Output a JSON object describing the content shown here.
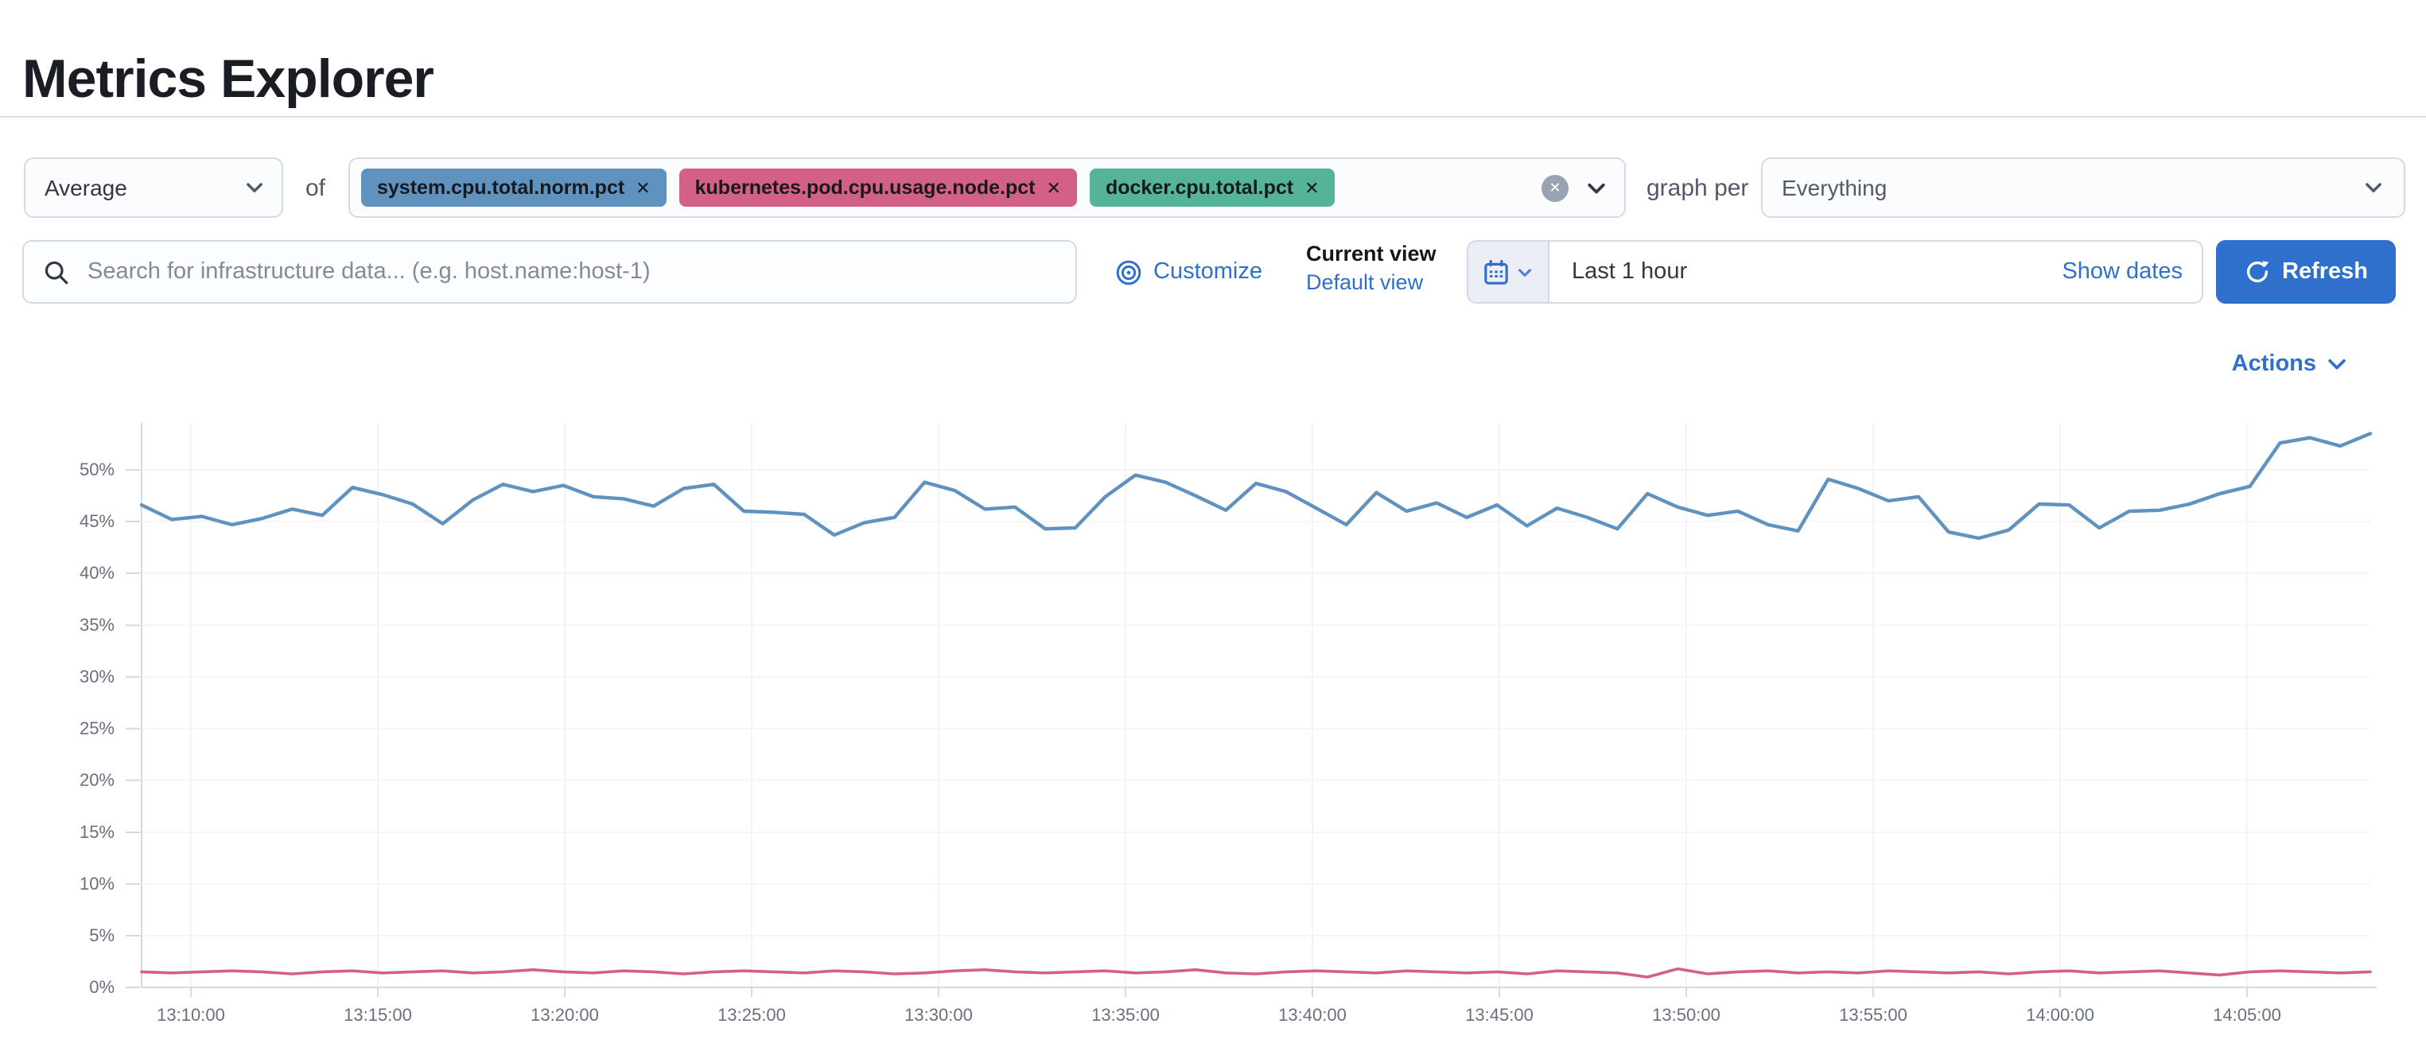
{
  "page": {
    "title": "Metrics Explorer"
  },
  "controls": {
    "aggregation": {
      "value": "Average"
    },
    "of_label": "of",
    "metrics": [
      {
        "label": "system.cpu.total.norm.pct",
        "color": "#6092C0"
      },
      {
        "label": "kubernetes.pod.cpu.usage.node.pct",
        "color": "#D36086"
      },
      {
        "label": "docker.cpu.total.pct",
        "color": "#54B399"
      }
    ],
    "remove_glyph": "✕",
    "clear_glyph": "✕",
    "graph_per_label": "graph per",
    "group_by": {
      "value": "Everything"
    }
  },
  "toolbar": {
    "search": {
      "value": "",
      "placeholder": "Search for infrastructure data... (e.g. host.name:host-1)"
    },
    "customize_label": "Customize",
    "view_selector": {
      "current_label": "Current view",
      "selected_view": "Default view"
    },
    "time_picker": {
      "value": "Last 1 hour",
      "show_dates_label": "Show dates"
    },
    "refresh_label": "Refresh"
  },
  "actions_label": "Actions",
  "icons": {
    "search": "search-icon",
    "customize": "bullseye-icon",
    "calendar": "calendar-icon",
    "refresh": "refresh-icon",
    "chevron": "chevron-down-icon",
    "clear": "clear-circle-icon"
  },
  "chart_data": {
    "type": "line",
    "title": "",
    "xlabel": "",
    "ylabel": "",
    "ylim": [
      0,
      55
    ],
    "grid": true,
    "legend": "none",
    "y_ticks": [
      "0%",
      "5%",
      "10%",
      "15%",
      "20%",
      "25%",
      "30%",
      "35%",
      "40%",
      "45%",
      "50%"
    ],
    "y_tick_values": [
      0,
      5,
      10,
      15,
      20,
      25,
      30,
      35,
      40,
      45,
      50
    ],
    "x_ticks": [
      "13:10:00",
      "13:15:00",
      "13:20:00",
      "13:25:00",
      "13:30:00",
      "13:35:00",
      "13:40:00",
      "13:45:00",
      "13:50:00",
      "13:55:00",
      "14:00:00",
      "14:05:00"
    ],
    "x_range_note": "Last 1 hour, ~13:08 to ~14:08, 1-minute resolution",
    "series": [
      {
        "name": "avg of system.cpu.total.norm.pct",
        "color": "#6092C0",
        "unit": "%",
        "values": [
          46.6,
          45.2,
          45.5,
          44.7,
          45.3,
          46.2,
          45.6,
          48.3,
          47.6,
          46.7,
          44.8,
          47.1,
          48.6,
          47.9,
          48.5,
          47.4,
          47.2,
          46.5,
          48.2,
          48.6,
          46.0,
          45.9,
          45.7,
          43.7,
          44.9,
          45.4,
          48.8,
          48.0,
          46.2,
          46.4,
          44.3,
          44.4,
          47.4,
          49.5,
          48.8,
          47.5,
          46.1,
          48.7,
          47.9,
          46.3,
          44.7,
          47.8,
          46.0,
          46.8,
          45.4,
          46.6,
          44.6,
          46.3,
          45.4,
          44.3,
          47.7,
          46.4,
          45.6,
          46.0,
          44.7,
          44.1,
          49.1,
          48.2,
          47.0,
          47.4,
          44.0,
          43.4,
          44.2,
          46.7,
          46.6,
          44.4,
          46.0,
          46.1,
          46.7,
          47.7,
          48.4,
          52.6,
          53.1,
          52.3,
          53.5
        ]
      },
      {
        "name": "avg of kubernetes.pod.cpu.usage.node.pct",
        "color": "#D36086",
        "unit": "%",
        "values": [
          1.5,
          1.4,
          1.5,
          1.6,
          1.5,
          1.3,
          1.5,
          1.6,
          1.4,
          1.5,
          1.6,
          1.4,
          1.5,
          1.7,
          1.5,
          1.4,
          1.6,
          1.5,
          1.3,
          1.5,
          1.6,
          1.5,
          1.4,
          1.6,
          1.5,
          1.3,
          1.4,
          1.6,
          1.7,
          1.5,
          1.4,
          1.5,
          1.6,
          1.4,
          1.5,
          1.7,
          1.4,
          1.3,
          1.5,
          1.6,
          1.5,
          1.4,
          1.6,
          1.5,
          1.4,
          1.5,
          1.3,
          1.6,
          1.5,
          1.4,
          1.0,
          1.8,
          1.3,
          1.5,
          1.6,
          1.4,
          1.5,
          1.4,
          1.6,
          1.5,
          1.4,
          1.5,
          1.3,
          1.5,
          1.6,
          1.4,
          1.5,
          1.6,
          1.4,
          1.2,
          1.5,
          1.6,
          1.5,
          1.4,
          1.5
        ]
      }
    ]
  }
}
